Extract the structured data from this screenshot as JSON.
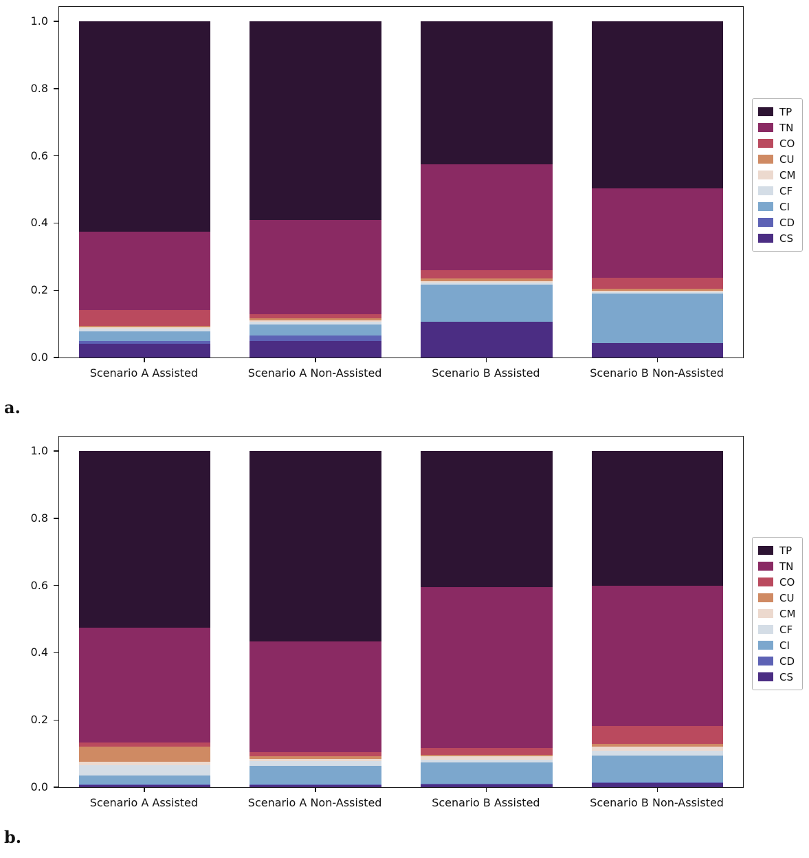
{
  "figure": {
    "panel_a_label": "a.",
    "panel_b_label": "b.",
    "background": "#ffffff"
  },
  "palette": {
    "TP": "#2d1433",
    "TN": "#8a2a63",
    "CO": "#ba4a5e",
    "CU": "#cf8a63",
    "CM": "#ecd9ce",
    "CF": "#d4dde6",
    "CI": "#7ca7cd",
    "CD": "#5d62b5",
    "CS": "#4b2d83"
  },
  "chart_data": [
    {
      "type": "bar",
      "stacked": true,
      "panel": "a",
      "title": "",
      "xlabel": "",
      "ylabel": "",
      "ylim": [
        0,
        1.045
      ],
      "yticks": [
        "0.0",
        "0.2",
        "0.4",
        "0.6",
        "0.8",
        "1.0"
      ],
      "ytick_values": [
        0.0,
        0.2,
        0.4,
        0.6,
        0.8,
        1.0
      ],
      "grid": false,
      "legend_position": "right-outside",
      "categories": [
        "Scenario A Assisted",
        "Scenario A Non-Assisted",
        "Scenario B Assisted",
        "Scenario B Non-Assisted"
      ],
      "series": [
        {
          "name": "TP",
          "color": "#2d1433",
          "values": [
            0.625,
            0.59,
            0.425,
            0.497
          ]
        },
        {
          "name": "TN",
          "color": "#8a2a63",
          "values": [
            0.233,
            0.282,
            0.315,
            0.265
          ]
        },
        {
          "name": "CO",
          "color": "#ba4a5e",
          "values": [
            0.048,
            0.012,
            0.025,
            0.033
          ]
        },
        {
          "name": "CU",
          "color": "#cf8a63",
          "values": [
            0.004,
            0.006,
            0.008,
            0.006
          ]
        },
        {
          "name": "CM",
          "color": "#ecd9ce",
          "values": [
            0.004,
            0.004,
            0.004,
            0.004
          ]
        },
        {
          "name": "CF",
          "color": "#d4dde6",
          "values": [
            0.008,
            0.008,
            0.006,
            0.005
          ]
        },
        {
          "name": "CI",
          "color": "#7ca7cd",
          "values": [
            0.03,
            0.032,
            0.11,
            0.148
          ]
        },
        {
          "name": "CD",
          "color": "#5d62b5",
          "values": [
            0.008,
            0.018,
            0.0,
            0.0
          ]
        },
        {
          "name": "CS",
          "color": "#4b2d83",
          "values": [
            0.04,
            0.048,
            0.107,
            0.042
          ]
        }
      ]
    },
    {
      "type": "bar",
      "stacked": true,
      "panel": "b",
      "title": "",
      "xlabel": "",
      "ylabel": "",
      "ylim": [
        0,
        1.045
      ],
      "yticks": [
        "0.0",
        "0.2",
        "0.4",
        "0.6",
        "0.8",
        "1.0"
      ],
      "ytick_values": [
        0.0,
        0.2,
        0.4,
        0.6,
        0.8,
        1.0
      ],
      "grid": false,
      "legend_position": "right-outside",
      "categories": [
        "Scenario A Assisted",
        "Scenario A Non-Assisted",
        "Scenario B Assisted",
        "Scenario B Non-Assisted"
      ],
      "series": [
        {
          "name": "TP",
          "color": "#2d1433",
          "values": [
            0.525,
            0.567,
            0.404,
            0.4
          ]
        },
        {
          "name": "TN",
          "color": "#8a2a63",
          "values": [
            0.342,
            0.328,
            0.48,
            0.417
          ]
        },
        {
          "name": "CO",
          "color": "#ba4a5e",
          "values": [
            0.013,
            0.012,
            0.02,
            0.055
          ]
        },
        {
          "name": "CU",
          "color": "#cf8a63",
          "values": [
            0.045,
            0.01,
            0.005,
            0.008
          ]
        },
        {
          "name": "CM",
          "color": "#ecd9ce",
          "values": [
            0.01,
            0.005,
            0.01,
            0.012
          ]
        },
        {
          "name": "CF",
          "color": "#d4dde6",
          "values": [
            0.03,
            0.015,
            0.008,
            0.013
          ]
        },
        {
          "name": "CI",
          "color": "#7ca7cd",
          "values": [
            0.027,
            0.055,
            0.062,
            0.08
          ]
        },
        {
          "name": "CD",
          "color": "#5d62b5",
          "values": [
            0.003,
            0.003,
            0.003,
            0.003
          ]
        },
        {
          "name": "CS",
          "color": "#4b2d83",
          "values": [
            0.005,
            0.005,
            0.008,
            0.012
          ]
        }
      ]
    }
  ]
}
